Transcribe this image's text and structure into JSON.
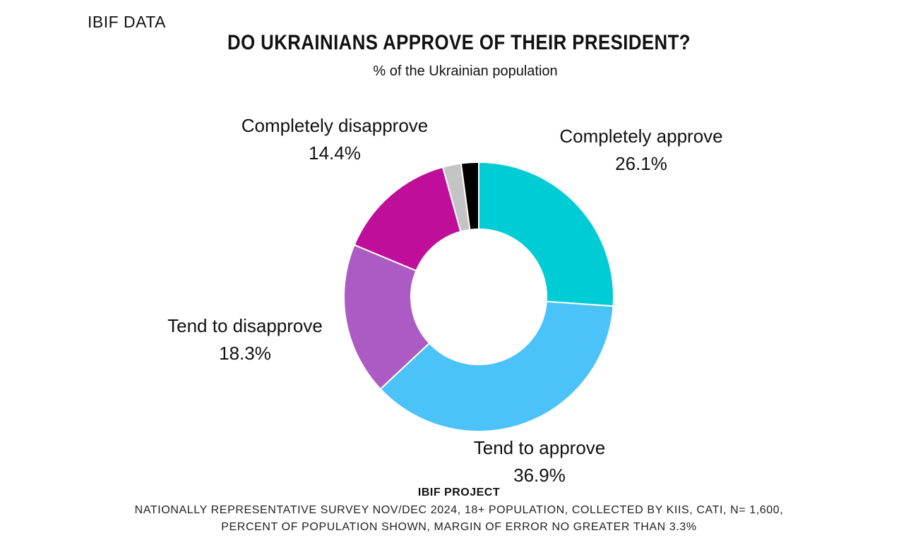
{
  "header": {
    "brand": "IBIF DATA",
    "title": "DO UKRAINIANS APPROVE OF THEIR PRESIDENT?",
    "subtitle": "% of the Ukrainian population"
  },
  "chart_data": {
    "type": "pie",
    "donut": true,
    "slices": [
      {
        "name": "Completely approve",
        "value": 26.1,
        "value_label": "26.1%",
        "color": "#00CCD6"
      },
      {
        "name": "Tend to approve",
        "value": 36.9,
        "value_label": "36.9%",
        "color": "#4CC3F8"
      },
      {
        "name": "Tend to disapprove",
        "value": 18.3,
        "value_label": "18.3%",
        "color": "#AD5BC4"
      },
      {
        "name": "Completely disapprove",
        "value": 14.4,
        "value_label": "14.4%",
        "color": "#BF0F9A"
      },
      {
        "name": "",
        "value": 2.2,
        "value_label": "",
        "color": "#C4C4C4"
      },
      {
        "name": "",
        "value": 2.1,
        "value_label": "",
        "color": "#000000"
      }
    ]
  },
  "footer": {
    "heading": "IBIF PROJECT",
    "lines": [
      "NATIONALLY REPRESENTATIVE SURVEY NOV/DEC 2024, 18+ POPULATION, COLLECTED BY KIIS, CATI, N= 1,600,",
      "PERCENT OF POPULATION SHOWN, MARGIN OF ERROR NO GREATER THAN 3.3%"
    ]
  }
}
